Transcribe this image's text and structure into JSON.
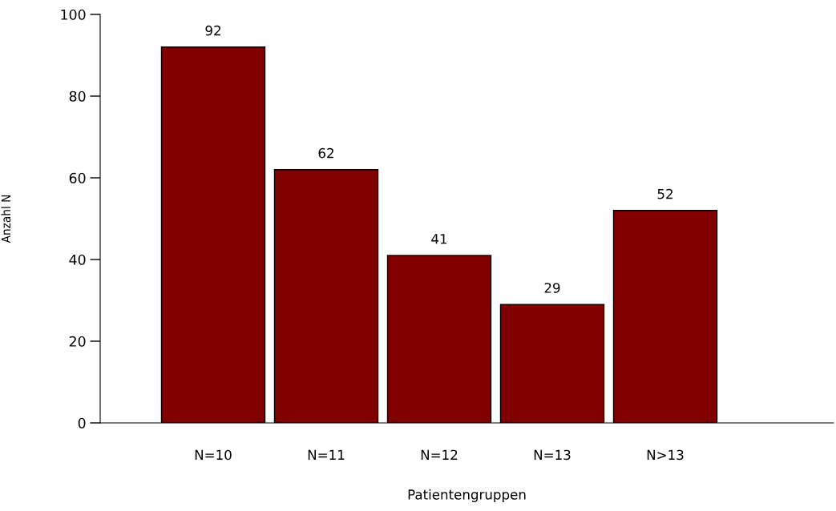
{
  "chart_data": {
    "type": "bar",
    "xlabel": "Patientengruppen",
    "ylabel": "Anzahl N",
    "categories": [
      "N=10",
      "N=11",
      "N=12",
      "N=13",
      "N>13"
    ],
    "values": [
      92,
      62,
      41,
      29,
      52
    ],
    "color": "#800000",
    "ylim": [
      0,
      100
    ],
    "yticks": [
      0,
      20,
      40,
      60,
      80,
      100
    ],
    "grid": false,
    "legend": false,
    "data_labels": true
  }
}
